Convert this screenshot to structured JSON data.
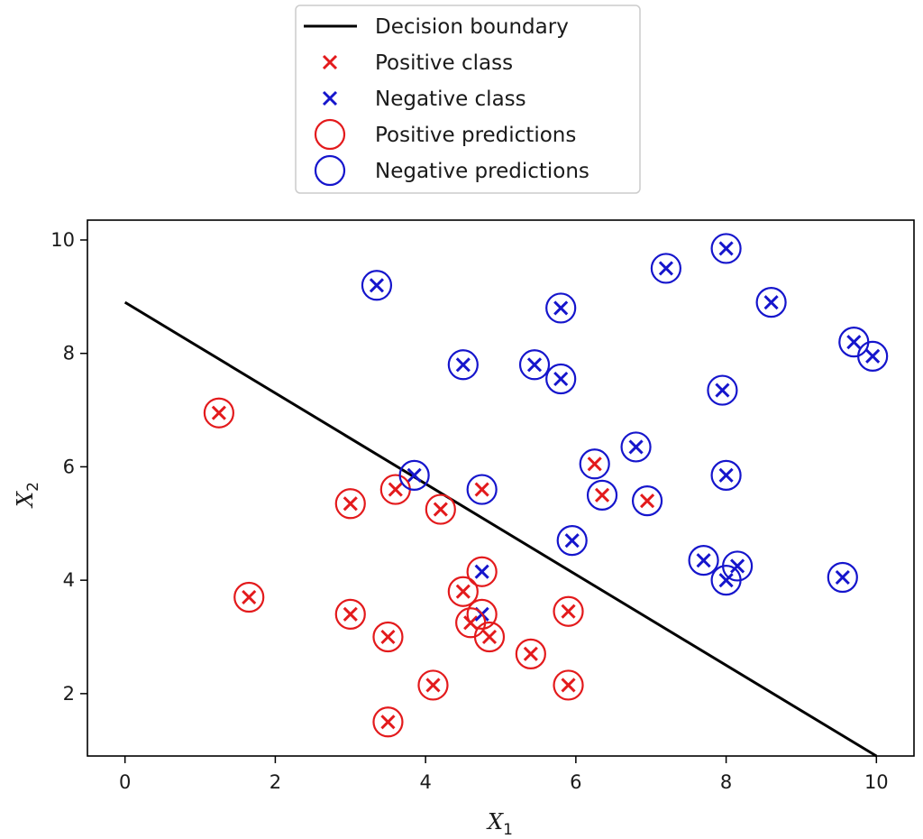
{
  "chart_data": {
    "type": "scatter",
    "title": "",
    "xlabel_main": "X",
    "xlabel_sub": "1",
    "ylabel_main": "X",
    "ylabel_sub": "2",
    "xlim": [
      -0.5,
      10.5
    ],
    "ylim": [
      0.9,
      10.35
    ],
    "x_ticks": [
      0,
      2,
      4,
      6,
      8,
      10
    ],
    "y_ticks": [
      2,
      4,
      6,
      8,
      10
    ],
    "grid": false,
    "legend_position": "above plot, centered",
    "colors": {
      "positive": "#e31a1c",
      "negative": "#1515cc",
      "boundary": "#000000"
    },
    "legend": [
      {
        "label": "Decision boundary",
        "kind": "line",
        "color": "#000000"
      },
      {
        "label": "Positive class",
        "kind": "x",
        "color": "#e31a1c"
      },
      {
        "label": "Negative class",
        "kind": "x",
        "color": "#1515cc"
      },
      {
        "label": "Positive predictions",
        "kind": "circle",
        "color": "#e31a1c"
      },
      {
        "label": "Negative predictions",
        "kind": "circle",
        "color": "#1515cc"
      }
    ],
    "decision_boundary": {
      "x": [
        0,
        10
      ],
      "y": [
        8.9,
        0.9
      ]
    },
    "series": [
      {
        "name": "Positive class",
        "marker": "x",
        "color": "#e31a1c",
        "points": [
          [
            1.25,
            6.95
          ],
          [
            1.65,
            3.7
          ],
          [
            3.0,
            5.35
          ],
          [
            3.0,
            3.4
          ],
          [
            3.5,
            3.0
          ],
          [
            3.5,
            1.5
          ],
          [
            3.6,
            5.6
          ],
          [
            4.1,
            2.15
          ],
          [
            4.2,
            5.25
          ],
          [
            4.5,
            3.8
          ],
          [
            4.6,
            3.25
          ],
          [
            4.75,
            5.6
          ],
          [
            4.85,
            3.0
          ],
          [
            5.4,
            2.7
          ],
          [
            5.9,
            3.45
          ],
          [
            5.9,
            2.15
          ],
          [
            6.25,
            6.05
          ],
          [
            6.35,
            5.5
          ],
          [
            6.95,
            5.4
          ]
        ]
      },
      {
        "name": "Negative class",
        "marker": "x",
        "color": "#1515cc",
        "points": [
          [
            3.35,
            9.2
          ],
          [
            3.85,
            5.85
          ],
          [
            4.5,
            7.8
          ],
          [
            4.75,
            4.15
          ],
          [
            4.75,
            3.4
          ],
          [
            5.45,
            7.8
          ],
          [
            5.8,
            8.8
          ],
          [
            5.8,
            7.55
          ],
          [
            5.95,
            4.7
          ],
          [
            6.8,
            6.35
          ],
          [
            7.2,
            9.5
          ],
          [
            7.7,
            4.35
          ],
          [
            7.95,
            7.35
          ],
          [
            8.0,
            9.85
          ],
          [
            8.0,
            5.85
          ],
          [
            8.0,
            4.0
          ],
          [
            8.15,
            4.25
          ],
          [
            8.6,
            8.9
          ],
          [
            9.55,
            4.05
          ],
          [
            9.7,
            8.2
          ],
          [
            9.95,
            7.95
          ]
        ]
      },
      {
        "name": "Positive predictions",
        "marker": "circle",
        "color": "#e31a1c",
        "points": [
          [
            1.25,
            6.95
          ],
          [
            1.65,
            3.7
          ],
          [
            3.0,
            5.35
          ],
          [
            3.0,
            3.4
          ],
          [
            3.5,
            3.0
          ],
          [
            3.5,
            1.5
          ],
          [
            3.6,
            5.6
          ],
          [
            4.1,
            2.15
          ],
          [
            4.2,
            5.25
          ],
          [
            4.5,
            3.8
          ],
          [
            4.6,
            3.25
          ],
          [
            4.75,
            3.4
          ],
          [
            4.75,
            4.15
          ],
          [
            4.85,
            3.0
          ],
          [
            5.4,
            2.7
          ],
          [
            5.9,
            3.45
          ],
          [
            5.9,
            2.15
          ]
        ]
      },
      {
        "name": "Negative predictions",
        "marker": "circle",
        "color": "#1515cc",
        "points": [
          [
            3.35,
            9.2
          ],
          [
            3.85,
            5.85
          ],
          [
            4.5,
            7.8
          ],
          [
            4.75,
            5.6
          ],
          [
            5.45,
            7.8
          ],
          [
            5.8,
            8.8
          ],
          [
            5.8,
            7.55
          ],
          [
            5.95,
            4.7
          ],
          [
            6.25,
            6.05
          ],
          [
            6.35,
            5.5
          ],
          [
            6.8,
            6.35
          ],
          [
            6.95,
            5.4
          ],
          [
            7.2,
            9.5
          ],
          [
            7.7,
            4.35
          ],
          [
            7.95,
            7.35
          ],
          [
            8.0,
            9.85
          ],
          [
            8.0,
            5.85
          ],
          [
            8.0,
            4.0
          ],
          [
            8.15,
            4.25
          ],
          [
            8.6,
            8.9
          ],
          [
            9.55,
            4.05
          ],
          [
            9.7,
            8.2
          ],
          [
            9.95,
            7.95
          ]
        ]
      }
    ]
  }
}
